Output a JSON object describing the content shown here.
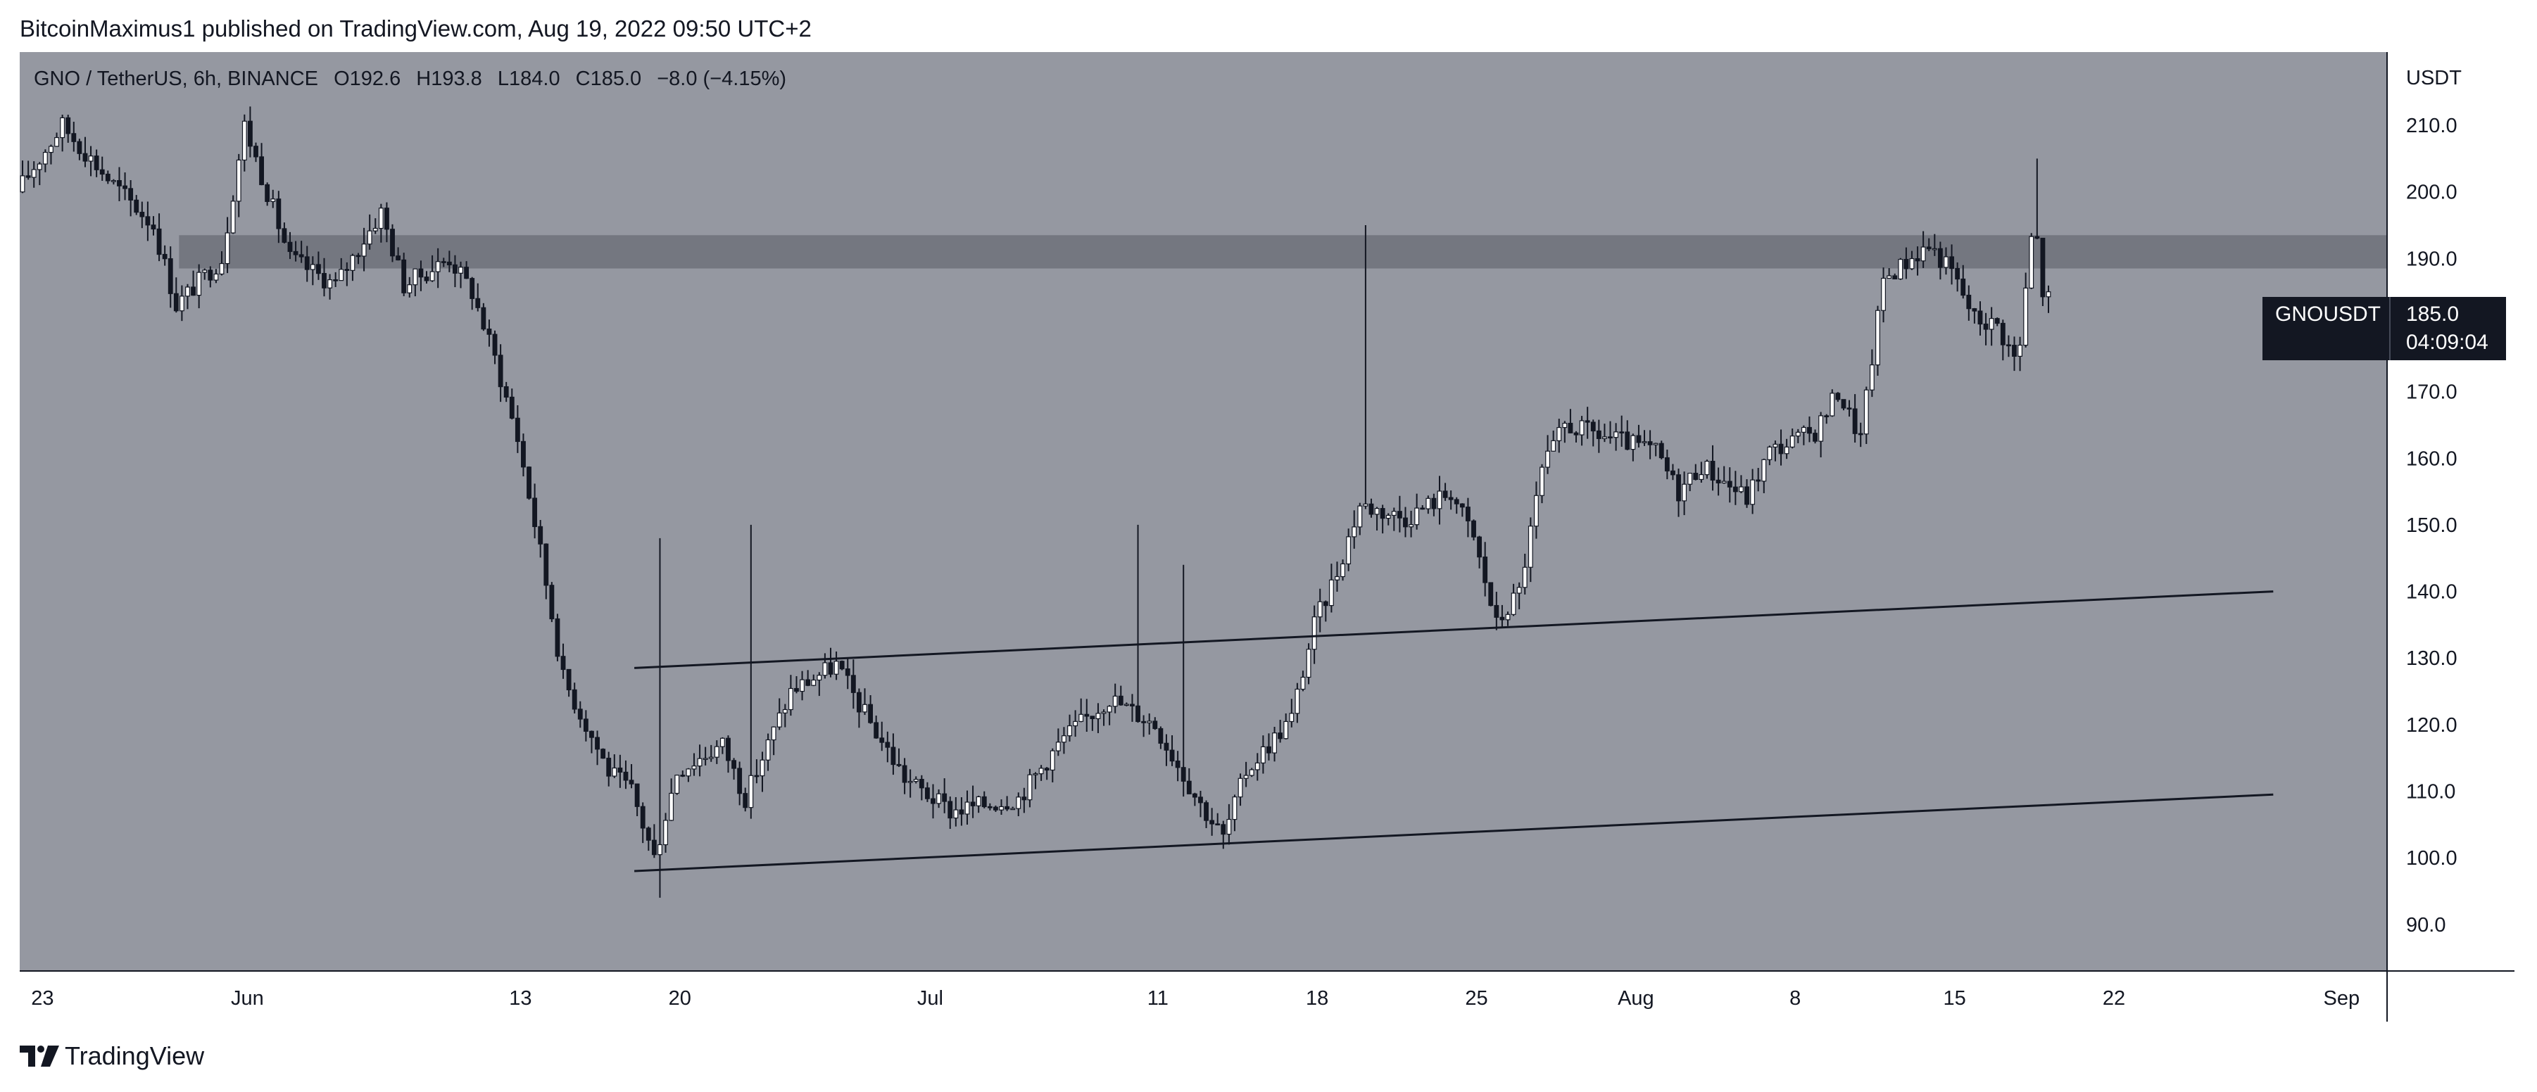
{
  "publisher_line": "BitcoinMaximus1 published on TradingView.com, Aug 19, 2022 09:50 UTC+2",
  "legend": {
    "symbol": "GNO / TetherUS, 6h, BINANCE",
    "open_label": "O",
    "open": "192.6",
    "high_label": "H",
    "high": "193.8",
    "low_label": "L",
    "low": "184.0",
    "close_label": "C",
    "close": "185.0",
    "change": "−8.0 (−4.15%)"
  },
  "price_badge": {
    "symbol": "GNOUSDT",
    "price": "185.0",
    "countdown": "04:09:04"
  },
  "footer": {
    "brand": "TradingView"
  },
  "colors": {
    "pane_background": "#9598a1",
    "axis_background": "#ffffff",
    "candle_up": "#ffffff",
    "candle_down": "#131722",
    "wick": "#131722",
    "zone": "#6e717a",
    "trendline": "#131722"
  },
  "chart_data": {
    "type": "candlestick",
    "symbol": "GNO / TetherUS",
    "interval": "6h",
    "exchange": "BINANCE",
    "currency_label": "USDT",
    "y_ticks": [
      90,
      100,
      110,
      120,
      130,
      140,
      150,
      160,
      170,
      180,
      190,
      200,
      210
    ],
    "y_tick_labels": [
      "90.0",
      "100.0",
      "110.0",
      "120.0",
      "130.0",
      "140.0",
      "150.0",
      "160.0",
      "170.0",
      "180.0",
      "190.0",
      "200.0",
      "210.0"
    ],
    "ylim": [
      83,
      221
    ],
    "xlim": [
      "2022-05-22",
      "2022-09-03"
    ],
    "x_ticks": [
      {
        "date": "2022-05-23",
        "label": "23"
      },
      {
        "date": "2022-06-01",
        "label": "Jun"
      },
      {
        "date": "2022-06-13",
        "label": "13"
      },
      {
        "date": "2022-06-20",
        "label": "20"
      },
      {
        "date": "2022-07-01",
        "label": "Jul"
      },
      {
        "date": "2022-07-11",
        "label": "11"
      },
      {
        "date": "2022-07-18",
        "label": "18"
      },
      {
        "date": "2022-07-25",
        "label": "25"
      },
      {
        "date": "2022-08-01",
        "label": "Aug"
      },
      {
        "date": "2022-08-08",
        "label": "8"
      },
      {
        "date": "2022-08-15",
        "label": "15"
      },
      {
        "date": "2022-08-22",
        "label": "22"
      },
      {
        "date": "2022-09-01",
        "label": "Sep"
      }
    ],
    "last_close": 185.0,
    "resistance_zone": {
      "low": 188.5,
      "high": 193.5,
      "from": "2022-05-29"
    },
    "channel_lines": [
      {
        "start": {
          "date": "2022-06-18",
          "price": 128.5
        },
        "end": {
          "date": "2022-08-29",
          "price": 140.0
        }
      },
      {
        "start": {
          "date": "2022-06-18",
          "price": 98.0
        },
        "end": {
          "date": "2022-08-29",
          "price": 109.5
        }
      }
    ],
    "price_anchors": [
      [
        "2022-05-22",
        200
      ],
      [
        "2022-05-24",
        210
      ],
      [
        "2022-05-26",
        202
      ],
      [
        "2022-05-28",
        195
      ],
      [
        "2022-05-29",
        183
      ],
      [
        "2022-05-31",
        190
      ],
      [
        "2022-06-01",
        210
      ],
      [
        "2022-06-03",
        190
      ],
      [
        "2022-06-05",
        186
      ],
      [
        "2022-06-07",
        197
      ],
      [
        "2022-06-08",
        186
      ],
      [
        "2022-06-10",
        190
      ],
      [
        "2022-06-11",
        185
      ],
      [
        "2022-06-12",
        175
      ],
      [
        "2022-06-13",
        163
      ],
      [
        "2022-06-14",
        146
      ],
      [
        "2022-06-15",
        127
      ],
      [
        "2022-06-16",
        120
      ],
      [
        "2022-06-17",
        113
      ],
      [
        "2022-06-18",
        110
      ],
      [
        "2022-06-19",
        100
      ],
      [
        "2022-06-20",
        113
      ],
      [
        "2022-06-22",
        117
      ],
      [
        "2022-06-23",
        109
      ],
      [
        "2022-06-25",
        125
      ],
      [
        "2022-06-27",
        129
      ],
      [
        "2022-06-28",
        123
      ],
      [
        "2022-06-30",
        112
      ],
      [
        "2022-07-02",
        107
      ],
      [
        "2022-07-05",
        109
      ],
      [
        "2022-07-07",
        118
      ],
      [
        "2022-07-09",
        124
      ],
      [
        "2022-07-11",
        120
      ],
      [
        "2022-07-13",
        108
      ],
      [
        "2022-07-14",
        103
      ],
      [
        "2022-07-15",
        113
      ],
      [
        "2022-07-17",
        121
      ],
      [
        "2022-07-18",
        135
      ],
      [
        "2022-07-19",
        143
      ],
      [
        "2022-07-20",
        153
      ],
      [
        "2022-07-22",
        151
      ],
      [
        "2022-07-24",
        155
      ],
      [
        "2022-07-25",
        148
      ],
      [
        "2022-07-26",
        135
      ],
      [
        "2022-07-27",
        140
      ],
      [
        "2022-07-28",
        158
      ],
      [
        "2022-07-29",
        165
      ],
      [
        "2022-07-31",
        163
      ],
      [
        "2022-08-02",
        161
      ],
      [
        "2022-08-03",
        155
      ],
      [
        "2022-08-04",
        159
      ],
      [
        "2022-08-06",
        154
      ],
      [
        "2022-08-07",
        161
      ],
      [
        "2022-08-09",
        164
      ],
      [
        "2022-08-10",
        170
      ],
      [
        "2022-08-11",
        163
      ],
      [
        "2022-08-12",
        187
      ],
      [
        "2022-08-14",
        192
      ],
      [
        "2022-08-15",
        188
      ],
      [
        "2022-08-16",
        181
      ],
      [
        "2022-08-17",
        180
      ],
      [
        "2022-08-17T18",
        175
      ],
      [
        "2022-08-18",
        177
      ],
      [
        "2022-08-18T12",
        193
      ],
      [
        "2022-08-18T18",
        192.6
      ],
      [
        "2022-08-19",
        185
      ]
    ],
    "notable_wicks": [
      {
        "date": "2022-06-19",
        "high": 148,
        "low": 94
      },
      {
        "date": "2022-06-23",
        "high": 150
      },
      {
        "date": "2022-07-10",
        "high": 150
      },
      {
        "date": "2022-07-12",
        "high": 144
      },
      {
        "date": "2022-07-20",
        "high": 195
      },
      {
        "date": "2022-08-18T12",
        "high": 205
      }
    ]
  }
}
